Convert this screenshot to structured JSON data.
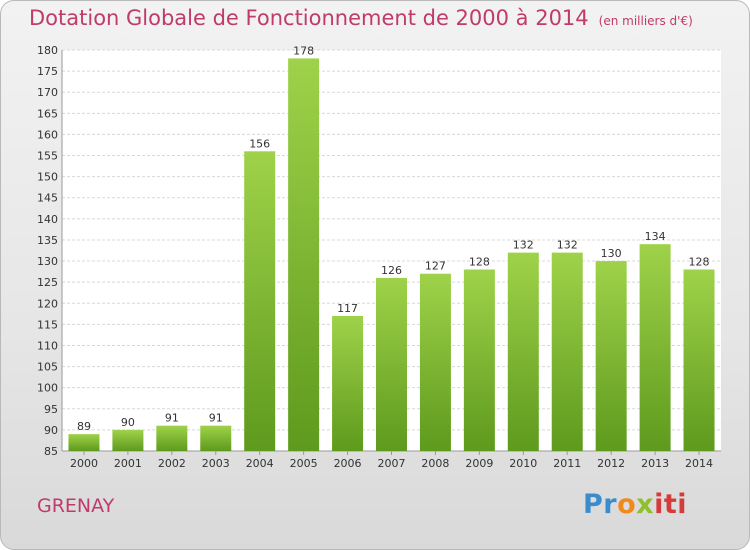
{
  "chart_data": {
    "type": "bar",
    "title": "Dotation Globale de Fonctionnement de 2000 à 2014",
    "subtitle": "(en milliers d'€)",
    "categories": [
      "2000",
      "2001",
      "2002",
      "2003",
      "2004",
      "2005",
      "2006",
      "2007",
      "2008",
      "2009",
      "2010",
      "2011",
      "2012",
      "2013",
      "2014"
    ],
    "values": [
      89,
      90,
      91,
      91,
      156,
      178,
      117,
      126,
      127,
      128,
      132,
      132,
      130,
      134,
      128
    ],
    "ylim": [
      85,
      180
    ],
    "yticks": [
      85,
      90,
      95,
      100,
      105,
      110,
      115,
      120,
      125,
      130,
      135,
      140,
      145,
      150,
      155,
      160,
      165,
      170,
      175,
      180
    ],
    "grid": true,
    "bar_color": "#7cb82f"
  },
  "footer": {
    "commune": "GRENAY",
    "logo_parts": [
      "Pr",
      "o",
      "x",
      "iti"
    ]
  },
  "colors": {
    "title": "#c03a6b",
    "bar_light": "#9fd24a",
    "bar_dark": "#5e9a1d"
  }
}
